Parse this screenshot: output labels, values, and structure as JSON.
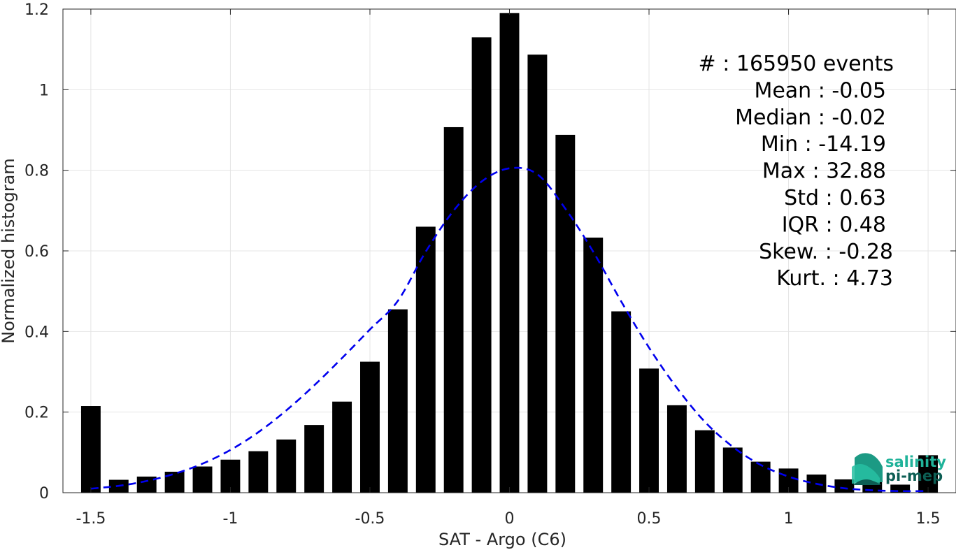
{
  "chart_data": {
    "type": "bar",
    "xlabel": "SAT - Argo (C6)",
    "ylabel": "Normalized histogram",
    "xlim": [
      -1.6,
      1.6
    ],
    "ylim": [
      0,
      1.2
    ],
    "grid": true,
    "x_ticks": [
      -1.5,
      -1,
      -0.5,
      0,
      0.5,
      1,
      1.5
    ],
    "x_tick_labels": [
      "-1.5",
      "-1",
      "-0.5",
      "0",
      "0.5",
      "1",
      "1.5"
    ],
    "y_ticks": [
      0,
      0.2,
      0.4,
      0.6,
      0.8,
      1,
      1.2
    ],
    "y_tick_labels": [
      "0",
      "0.2",
      "0.4",
      "0.6",
      "0.8",
      "1",
      "1.2"
    ],
    "bar_color": "#000000",
    "bar_width": 0.07,
    "bars": {
      "x": [
        -1.5,
        -1.4,
        -1.3,
        -1.2,
        -1.1,
        -1.0,
        -0.9,
        -0.8,
        -0.7,
        -0.6,
        -0.5,
        -0.4,
        -0.3,
        -0.2,
        -0.1,
        0.0,
        0.1,
        0.2,
        0.3,
        0.4,
        0.5,
        0.6,
        0.7,
        0.8,
        0.9,
        1.0,
        1.1,
        1.2,
        1.3,
        1.4,
        1.5
      ],
      "values": [
        0.215,
        0.032,
        0.04,
        0.052,
        0.065,
        0.082,
        0.103,
        0.132,
        0.168,
        0.226,
        0.325,
        0.455,
        0.66,
        0.907,
        1.13,
        1.19,
        1.087,
        0.888,
        0.633,
        0.45,
        0.308,
        0.217,
        0.155,
        0.112,
        0.077,
        0.06,
        0.045,
        0.033,
        0.027,
        0.02,
        0.093
      ]
    },
    "fit_curve": {
      "style": "dashed",
      "color": "#0000ee",
      "x": [
        -1.5,
        -1.4,
        -1.3,
        -1.2,
        -1.1,
        -1.0,
        -0.9,
        -0.8,
        -0.7,
        -0.6,
        -0.5,
        -0.4,
        -0.3,
        -0.2,
        -0.1,
        0.0,
        0.1,
        0.2,
        0.3,
        0.4,
        0.5,
        0.6,
        0.7,
        0.8,
        0.9,
        1.0,
        1.1,
        1.2,
        1.3,
        1.4,
        1.5
      ],
      "y": [
        0.01,
        0.017,
        0.029,
        0.047,
        0.072,
        0.106,
        0.15,
        0.204,
        0.266,
        0.334,
        0.405,
        0.476,
        0.598,
        0.7,
        0.772,
        0.805,
        0.79,
        0.705,
        0.598,
        0.475,
        0.36,
        0.26,
        0.176,
        0.114,
        0.069,
        0.04,
        0.022,
        0.011,
        0.006,
        0.004,
        0.004
      ]
    },
    "stats_lines": [
      "#  : 165950 events",
      "Mean : -0.05",
      "Median : -0.02",
      "Min : -14.19",
      "Max : 32.88",
      "Std : 0.63",
      "IQR : 0.48",
      "Skew. : -0.28",
      "Kurt. : 4.73"
    ],
    "stats_placement": "top-right"
  },
  "logo": {
    "line1": "salinity",
    "line2": "pi-mep",
    "color1": "#20b39a",
    "color2": "#0d5e54"
  }
}
